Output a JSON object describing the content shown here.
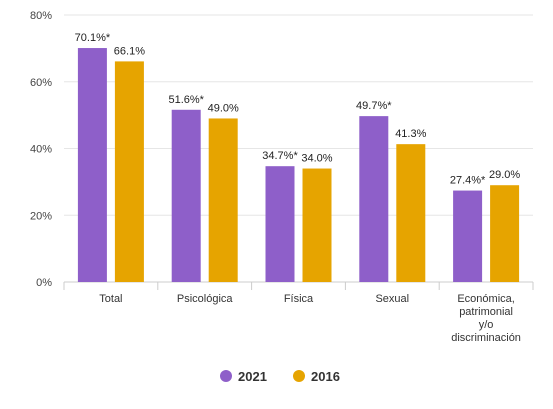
{
  "chart_data": {
    "type": "bar",
    "title": "",
    "xlabel": "",
    "ylabel": "",
    "ylim": [
      0,
      80
    ],
    "yticks": [
      "0%",
      "20%",
      "40%",
      "60%",
      "80%"
    ],
    "categories": [
      [
        "Total"
      ],
      [
        "Psicológica"
      ],
      [
        "Física"
      ],
      [
        "Sexual"
      ],
      [
        "Económica,",
        "patrimonial",
        "y/o",
        "discriminación"
      ]
    ],
    "series": [
      {
        "name": "2021",
        "color": "#8e5fc9",
        "values": [
          70.1,
          51.6,
          34.7,
          49.7,
          27.4
        ],
        "labels": [
          "70.1%*",
          "51.6%*",
          "34.7%*",
          "49.7%*",
          "27.4%*"
        ]
      },
      {
        "name": "2016",
        "color": "#e6a400",
        "values": [
          66.1,
          49.0,
          34.0,
          41.3,
          29.0
        ],
        "labels": [
          "66.1%",
          "49.0%",
          "34.0%",
          "41.3%",
          "29.0%"
        ]
      }
    ],
    "grid": true,
    "legend": "bottom-center"
  }
}
